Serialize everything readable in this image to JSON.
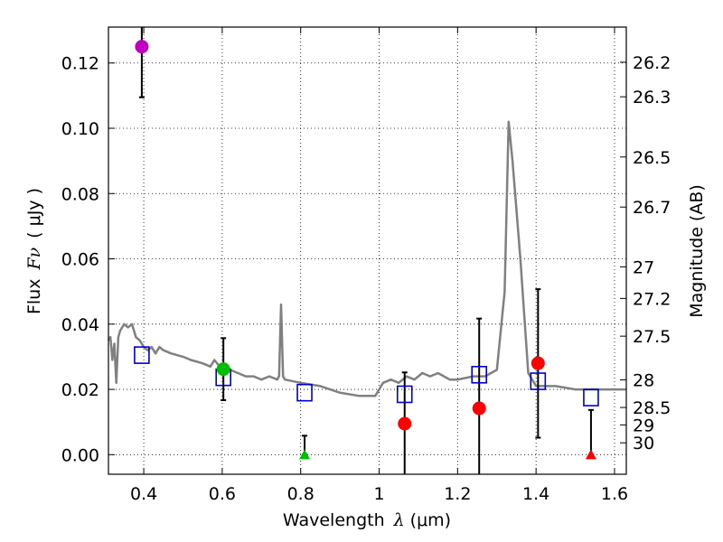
{
  "chart_data": {
    "type": "scatter",
    "xlabel_prefix": "Wavelength",
    "xlabel_symbol": "λ",
    "xlabel_unit": "(μm)",
    "ylabel_prefix": "Flux",
    "ylabel_symbol": "Fν",
    "ylabel_unit": "( μJy )",
    "y2label": "Magnitude (AB)",
    "xlim": [
      0.31,
      1.63
    ],
    "ylim": [
      -0.006,
      0.131
    ],
    "x_ticks": [
      0.4,
      0.6,
      0.8,
      1.0,
      1.2,
      1.4,
      1.6
    ],
    "x_tick_labels": [
      "0.4",
      "0.6",
      "0.8",
      "1",
      "1.2",
      "1.4",
      "1.6"
    ],
    "y_ticks": [
      0.0,
      0.02,
      0.04,
      0.06,
      0.08,
      0.1,
      0.12
    ],
    "y_tick_labels": [
      "0.00",
      "0.02",
      "0.04",
      "0.06",
      "0.08",
      "0.10",
      "0.12"
    ],
    "magnitude_ticks": [
      "26.2",
      "26.3",
      "26.5",
      "26.7",
      "27",
      "27.2",
      "27.5",
      "28",
      "28.5",
      "29",
      "30"
    ],
    "grid": true,
    "colors": {
      "spectrum": "#808080",
      "model_box": "#0000cc",
      "purple": "#bf00bf",
      "green": "#00bf00",
      "red": "#ff0000",
      "errorbar": "#000000"
    },
    "spectrum": {
      "name": "model-spectrum",
      "x": [
        0.31,
        0.315,
        0.32,
        0.325,
        0.33,
        0.335,
        0.34,
        0.345,
        0.35,
        0.36,
        0.37,
        0.38,
        0.39,
        0.4,
        0.41,
        0.42,
        0.43,
        0.44,
        0.45,
        0.47,
        0.5,
        0.52,
        0.55,
        0.57,
        0.58,
        0.6,
        0.62,
        0.64,
        0.66,
        0.68,
        0.7,
        0.72,
        0.74,
        0.745,
        0.75,
        0.755,
        0.76,
        0.8,
        0.85,
        0.9,
        0.95,
        0.99,
        1.0,
        1.01,
        1.03,
        1.05,
        1.07,
        1.09,
        1.11,
        1.13,
        1.15,
        1.18,
        1.2,
        1.24,
        1.27,
        1.3,
        1.32,
        1.33,
        1.34,
        1.36,
        1.38,
        1.4,
        1.45,
        1.5,
        1.55,
        1.6,
        1.63
      ],
      "y": [
        0.035,
        0.036,
        0.029,
        0.034,
        0.022,
        0.036,
        0.038,
        0.039,
        0.04,
        0.039,
        0.04,
        0.036,
        0.035,
        0.033,
        0.032,
        0.033,
        0.031,
        0.033,
        0.032,
        0.031,
        0.03,
        0.029,
        0.028,
        0.027,
        0.029,
        0.026,
        0.026,
        0.025,
        0.024,
        0.024,
        0.023,
        0.024,
        0.023,
        0.024,
        0.046,
        0.024,
        0.023,
        0.022,
        0.021,
        0.019,
        0.018,
        0.018,
        0.02,
        0.022,
        0.023,
        0.022,
        0.024,
        0.023,
        0.025,
        0.024,
        0.025,
        0.023,
        0.023,
        0.024,
        0.024,
        0.026,
        0.05,
        0.102,
        0.09,
        0.06,
        0.025,
        0.021,
        0.021,
        0.02,
        0.02,
        0.02,
        0.02
      ]
    },
    "model_points": [
      {
        "x": 0.395,
        "y": 0.0305
      },
      {
        "x": 0.603,
        "y": 0.0237
      },
      {
        "x": 0.81,
        "y": 0.019
      },
      {
        "x": 1.065,
        "y": 0.0185
      },
      {
        "x": 1.255,
        "y": 0.0245
      },
      {
        "x": 1.405,
        "y": 0.0225
      },
      {
        "x": 1.54,
        "y": 0.0175
      }
    ],
    "observed_points": [
      {
        "x": 0.395,
        "y": 0.125,
        "err_low": 0.1095,
        "err_high": 0.131,
        "marker": "circle",
        "color": "purple"
      },
      {
        "x": 0.603,
        "y": 0.0262,
        "err_low": 0.0167,
        "err_high": 0.0357,
        "marker": "circle",
        "color": "green"
      },
      {
        "x": 0.81,
        "y": 0.0,
        "err_low": 0.0,
        "err_high": 0.0058,
        "marker": "triangle",
        "color": "green"
      },
      {
        "x": 1.065,
        "y": 0.0095,
        "err_low": -0.006,
        "err_high": 0.0252,
        "marker": "circle",
        "color": "red"
      },
      {
        "x": 1.255,
        "y": 0.0142,
        "err_low": -0.006,
        "err_high": 0.0417,
        "marker": "circle",
        "color": "red"
      },
      {
        "x": 1.405,
        "y": 0.028,
        "err_low": 0.0052,
        "err_high": 0.0507,
        "marker": "circle",
        "color": "red"
      },
      {
        "x": 1.54,
        "y": 0.0,
        "err_low": 0.0,
        "err_high": 0.0137,
        "marker": "triangle",
        "color": "red"
      }
    ]
  }
}
